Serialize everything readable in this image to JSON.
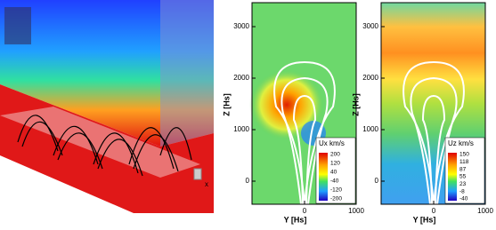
{
  "panels": [
    {
      "y_label": "Z [Hs]",
      "x_label": "Y [Hs]",
      "y_ticks": [
        "3000",
        "2000",
        "1000",
        "0"
      ],
      "x_ticks": [
        "0",
        "1000"
      ],
      "colorbar_title": "Ux km/s",
      "colorbar_labels": [
        "200",
        "120",
        "40",
        "-40",
        "-120",
        "-200"
      ]
    },
    {
      "y_label": "Z [Hs]",
      "x_label": "Y [Hs]",
      "y_ticks": [
        "3000",
        "2000",
        "1000",
        "0"
      ],
      "x_ticks": [
        "0",
        "1000"
      ],
      "colorbar_title": "Uz km/s",
      "colorbar_labels": [
        "150",
        "118",
        "87",
        "55",
        "23",
        "-8",
        "-40"
      ]
    }
  ],
  "axis_triad": "x"
}
